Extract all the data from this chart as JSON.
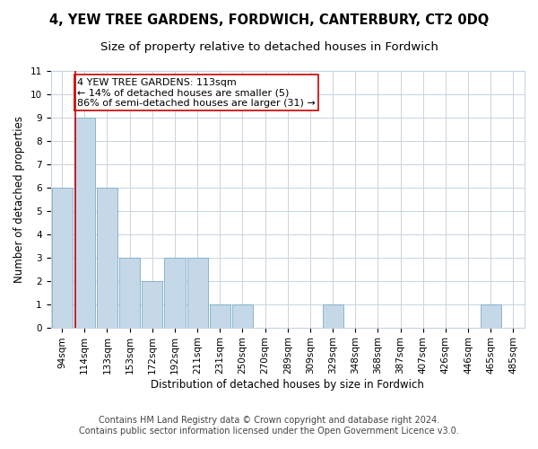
{
  "title": "4, YEW TREE GARDENS, FORDWICH, CANTERBURY, CT2 0DQ",
  "subtitle": "Size of property relative to detached houses in Fordwich",
  "xlabel": "Distribution of detached houses by size in Fordwich",
  "ylabel": "Number of detached properties",
  "footer_line1": "Contains HM Land Registry data © Crown copyright and database right 2024.",
  "footer_line2": "Contains public sector information licensed under the Open Government Licence v3.0.",
  "categories": [
    "94sqm",
    "114sqm",
    "133sqm",
    "153sqm",
    "172sqm",
    "192sqm",
    "211sqm",
    "231sqm",
    "250sqm",
    "270sqm",
    "289sqm",
    "309sqm",
    "329sqm",
    "348sqm",
    "368sqm",
    "387sqm",
    "407sqm",
    "426sqm",
    "446sqm",
    "465sqm",
    "485sqm"
  ],
  "values": [
    6,
    9,
    6,
    3,
    2,
    3,
    3,
    1,
    1,
    0,
    0,
    0,
    1,
    0,
    0,
    0,
    0,
    0,
    0,
    1,
    0
  ],
  "bar_color": "#c5d8e8",
  "bar_edgecolor": "#7aaec8",
  "annotation_text": "4 YEW TREE GARDENS: 113sqm\n← 14% of detached houses are smaller (5)\n86% of semi-detached houses are larger (31) →",
  "annotation_box_edgecolor": "#cc0000",
  "redline_x": 0.58,
  "ylim": [
    0,
    11
  ],
  "yticks": [
    0,
    1,
    2,
    3,
    4,
    5,
    6,
    7,
    8,
    9,
    10,
    11
  ],
  "background_color": "#ffffff",
  "grid_color": "#c8d4e0",
  "title_fontsize": 10.5,
  "subtitle_fontsize": 9.5,
  "axis_label_fontsize": 8.5,
  "tick_fontsize": 7.5,
  "annotation_fontsize": 8,
  "footer_fontsize": 7
}
